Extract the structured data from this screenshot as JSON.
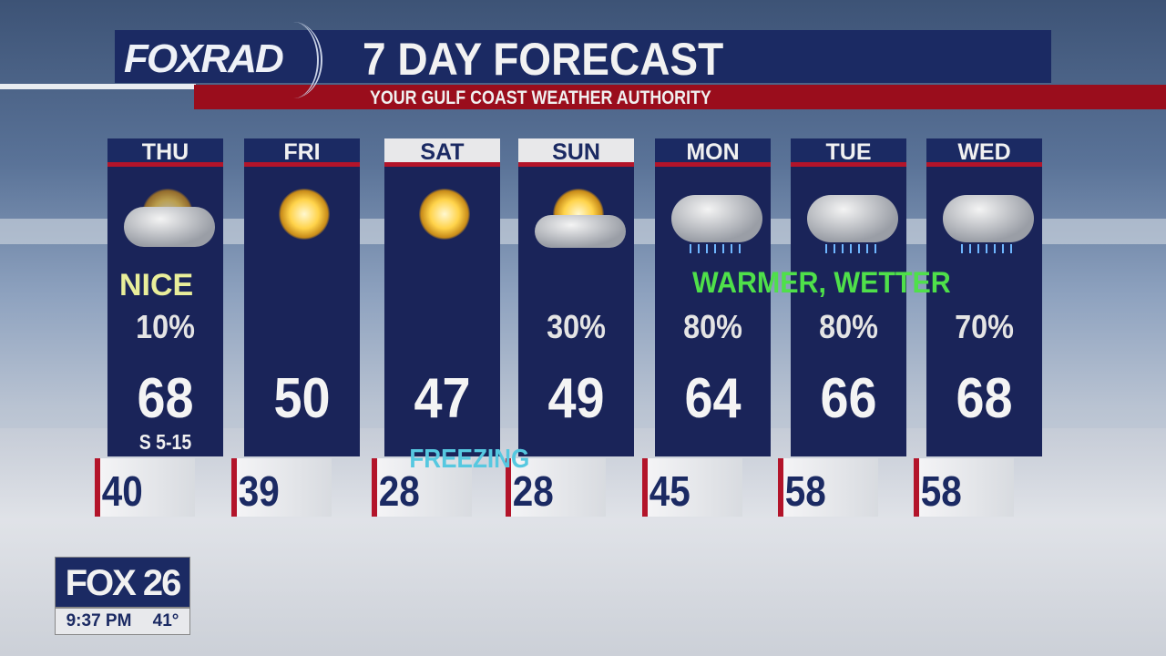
{
  "header": {
    "logo": "FOXRAD",
    "title": "7 DAY FORECAST",
    "subtitle": "YOUR GULF COAST WEATHER AUTHORITY"
  },
  "colors": {
    "navy": "#1b2a63",
    "red": "#b3142a",
    "note_nice": "#e9ee9a",
    "note_warmer": "#4fe04a",
    "freezing": "#56c8e0"
  },
  "days": [
    {
      "day": "THU",
      "icon": "partly-cloudy-icon",
      "precip": "10%",
      "high": "68",
      "wind": "S 5-15",
      "low": "40"
    },
    {
      "day": "FRI",
      "icon": "sunny-icon",
      "precip": "",
      "high": "50",
      "low": "39"
    },
    {
      "day": "SAT",
      "icon": "sunny-icon",
      "precip": "",
      "high": "47",
      "low": "28"
    },
    {
      "day": "SUN",
      "icon": "partly-sunny-icon",
      "precip": "30%",
      "high": "49",
      "low": "28"
    },
    {
      "day": "MON",
      "icon": "rain-cloud-icon",
      "precip": "80%",
      "high": "64",
      "low": "45"
    },
    {
      "day": "TUE",
      "icon": "rain-cloud-icon",
      "precip": "80%",
      "high": "66",
      "low": "58"
    },
    {
      "day": "WED",
      "icon": "rain-cloud-icon",
      "precip": "70%",
      "high": "68",
      "low": "58"
    }
  ],
  "notes": {
    "nice": "NICE",
    "warmer": "WARMER, WETTER",
    "freezing": "FREEZING"
  },
  "bug": {
    "station": "FOX 26",
    "time": "9:37 PM",
    "temp": "41°"
  }
}
